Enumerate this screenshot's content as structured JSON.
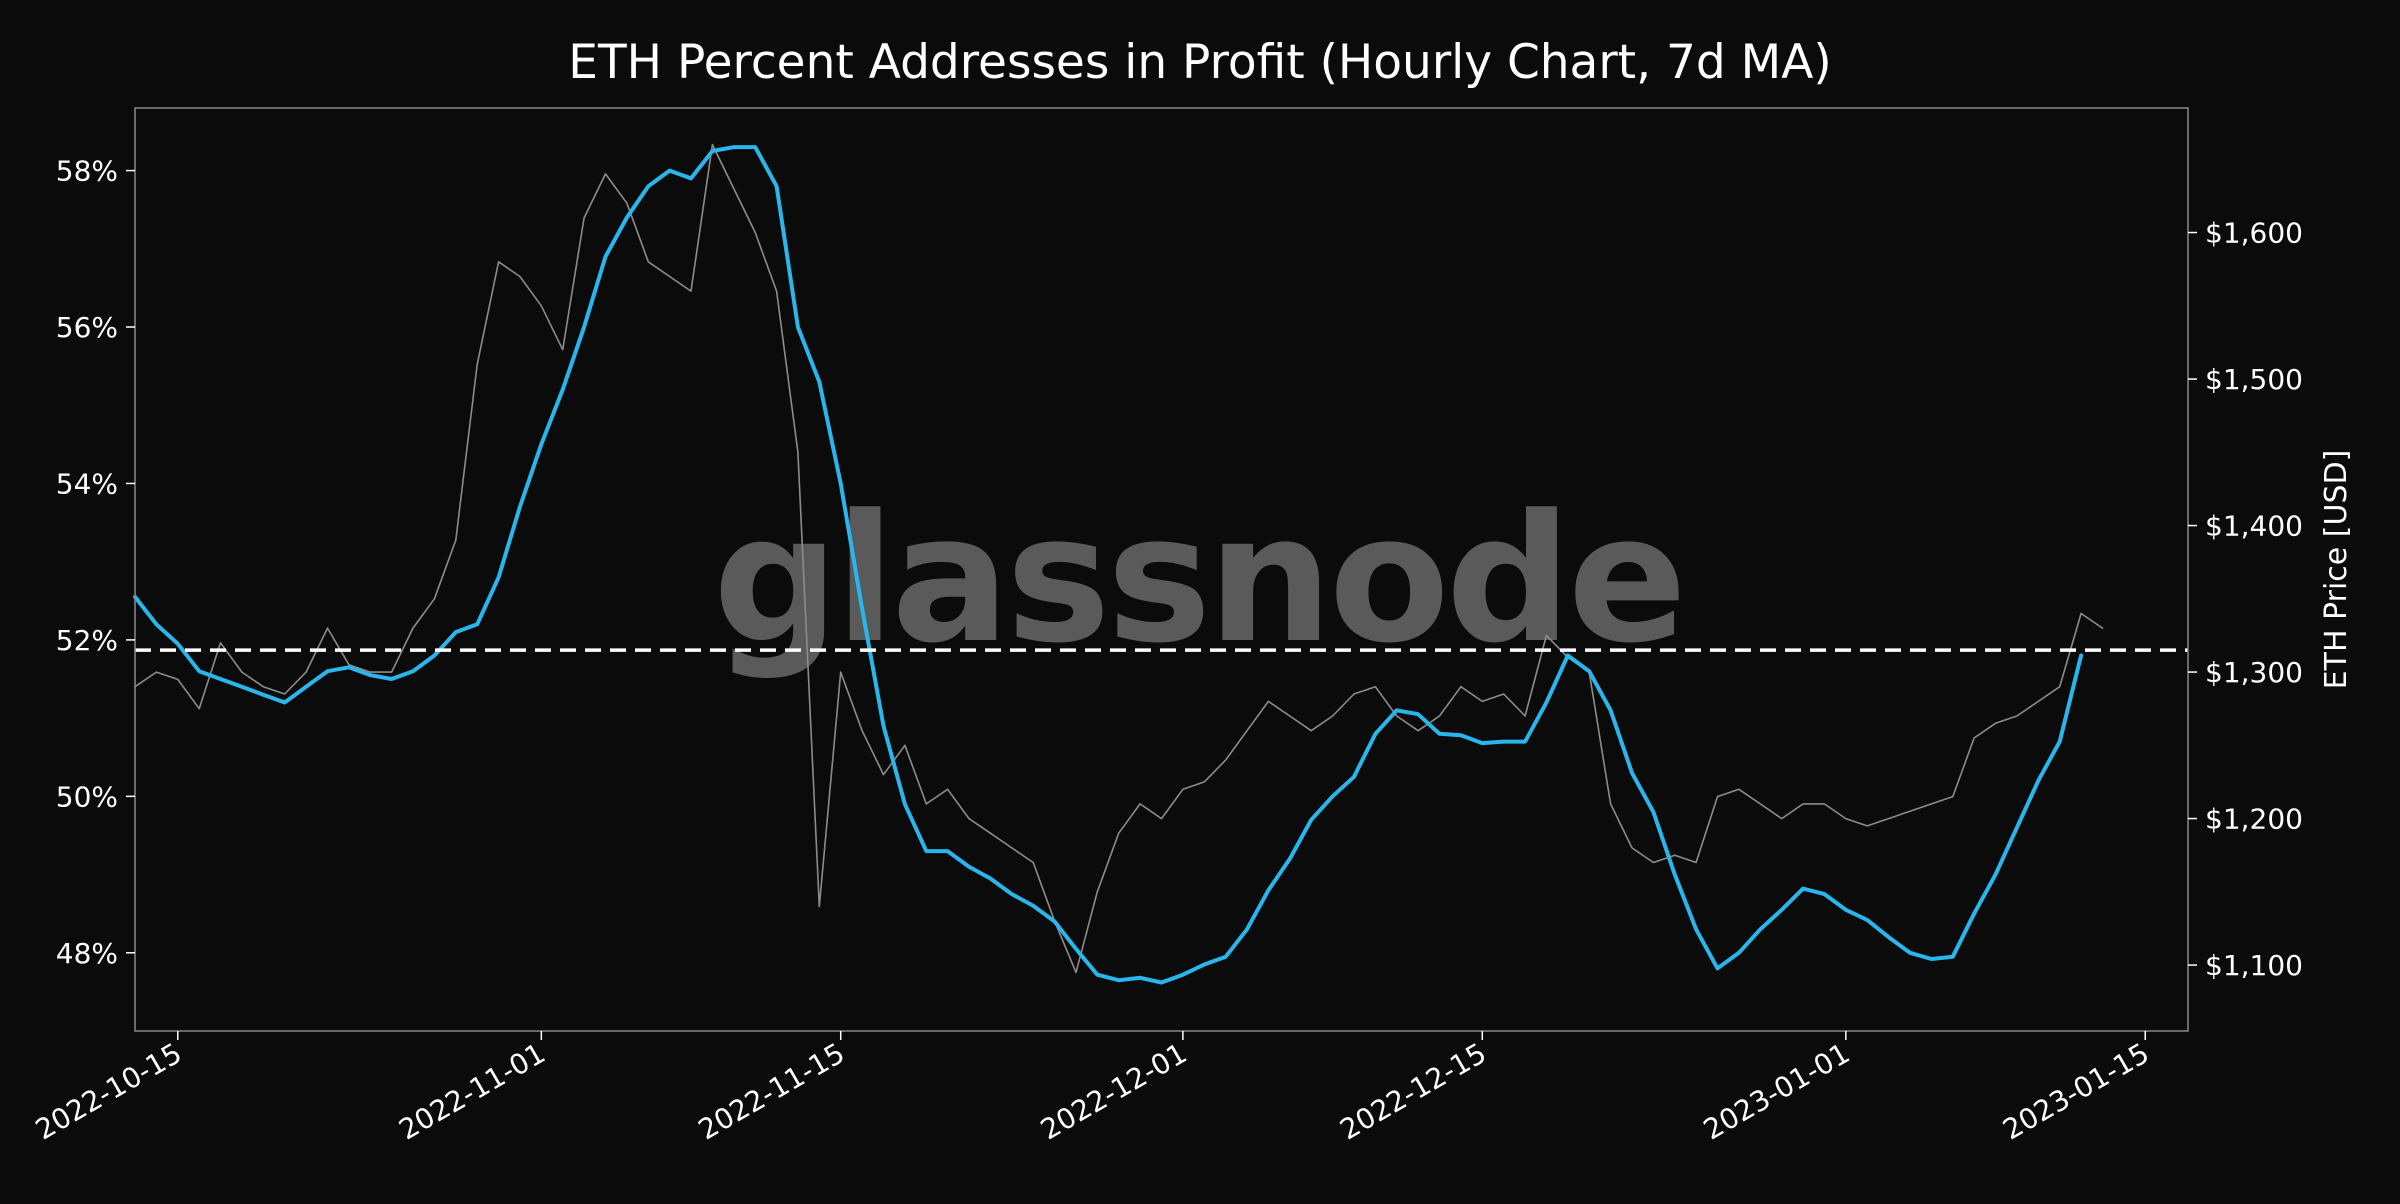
{
  "colors": {
    "background": "#0b0b0b",
    "plot_frame": "#8a8a8a",
    "ma_line": "#29b6ec",
    "price_line": "#8c8c8c",
    "threshold_line": "#ffffff",
    "text": "#ffffff",
    "watermark": "#5a5a5a"
  },
  "watermark": "glassnode",
  "chart_data": {
    "type": "line",
    "title": "ETH Percent Addresses in Profit (Hourly Chart, 7d MA)",
    "xlabel": "",
    "ylabel_left": "",
    "ylabel_right": "ETH Price [USD]",
    "x_range": [
      "2022-10-13",
      "2023-01-17"
    ],
    "ylim_left": [
      47,
      58.8
    ],
    "ylim_right": [
      1055,
      1685
    ],
    "x_ticks": [
      "2022-10-15",
      "2022-11-01",
      "2022-11-15",
      "2022-12-01",
      "2022-12-15",
      "2023-01-01",
      "2023-01-15"
    ],
    "y_ticks_left": [
      {
        "value": 48,
        "label": "48%"
      },
      {
        "value": 50,
        "label": "50%"
      },
      {
        "value": 52,
        "label": "52%"
      },
      {
        "value": 54,
        "label": "54%"
      },
      {
        "value": 56,
        "label": "56%"
      },
      {
        "value": 58,
        "label": "58%"
      }
    ],
    "y_ticks_right": [
      {
        "value": 1100,
        "label": "$1,100"
      },
      {
        "value": 1200,
        "label": "$1,200"
      },
      {
        "value": 1300,
        "label": "$1,300"
      },
      {
        "value": 1400,
        "label": "$1,400"
      },
      {
        "value": 1500,
        "label": "$1,500"
      },
      {
        "value": 1600,
        "label": "$1,600"
      }
    ],
    "threshold": {
      "axis": "left",
      "value": 51.87,
      "style": "dashed"
    },
    "grid": false,
    "legend": "none",
    "series": [
      {
        "axis": "left",
        "color": "#29b6ec",
        "points": [
          [
            "2022-10-13",
            52.55
          ],
          [
            "2022-10-14",
            52.2
          ],
          [
            "2022-10-15",
            51.95
          ],
          [
            "2022-10-16",
            51.6
          ],
          [
            "2022-10-17",
            51.5
          ],
          [
            "2022-10-18",
            51.4
          ],
          [
            "2022-10-19",
            51.3
          ],
          [
            "2022-10-20",
            51.2
          ],
          [
            "2022-10-21",
            51.4
          ],
          [
            "2022-10-22",
            51.6
          ],
          [
            "2022-10-23",
            51.65
          ],
          [
            "2022-10-24",
            51.55
          ],
          [
            "2022-10-25",
            51.5
          ],
          [
            "2022-10-26",
            51.6
          ],
          [
            "2022-10-27",
            51.8
          ],
          [
            "2022-10-28",
            52.1
          ],
          [
            "2022-10-29",
            52.2
          ],
          [
            "2022-10-30",
            52.8
          ],
          [
            "2022-10-31",
            53.7
          ],
          [
            "2022-11-01",
            54.5
          ],
          [
            "2022-11-02",
            55.2
          ],
          [
            "2022-11-03",
            56.0
          ],
          [
            "2022-11-04",
            56.9
          ],
          [
            "2022-11-05",
            57.4
          ],
          [
            "2022-11-06",
            57.8
          ],
          [
            "2022-11-07",
            58.0
          ],
          [
            "2022-11-08",
            57.9
          ],
          [
            "2022-11-09",
            58.25
          ],
          [
            "2022-11-10",
            58.3
          ],
          [
            "2022-11-11",
            58.3
          ],
          [
            "2022-11-12",
            57.8
          ],
          [
            "2022-11-13",
            56.0
          ],
          [
            "2022-11-14",
            55.3
          ],
          [
            "2022-11-15",
            54.0
          ],
          [
            "2022-11-16",
            52.4
          ],
          [
            "2022-11-17",
            50.9
          ],
          [
            "2022-11-18",
            49.9
          ],
          [
            "2022-11-19",
            49.3
          ],
          [
            "2022-11-20",
            49.3
          ],
          [
            "2022-11-21",
            49.1
          ],
          [
            "2022-11-22",
            48.95
          ],
          [
            "2022-11-23",
            48.75
          ],
          [
            "2022-11-24",
            48.6
          ],
          [
            "2022-11-25",
            48.4
          ],
          [
            "2022-11-26",
            48.05
          ],
          [
            "2022-11-27",
            47.72
          ],
          [
            "2022-11-28",
            47.65
          ],
          [
            "2022-11-29",
            47.68
          ],
          [
            "2022-11-30",
            47.62
          ],
          [
            "2022-12-01",
            47.72
          ],
          [
            "2022-12-02",
            47.85
          ],
          [
            "2022-12-03",
            47.95
          ],
          [
            "2022-12-04",
            48.3
          ],
          [
            "2022-12-05",
            48.8
          ],
          [
            "2022-12-06",
            49.2
          ],
          [
            "2022-12-07",
            49.7
          ],
          [
            "2022-12-08",
            50.0
          ],
          [
            "2022-12-09",
            50.25
          ],
          [
            "2022-12-10",
            50.8
          ],
          [
            "2022-12-11",
            51.1
          ],
          [
            "2022-12-12",
            51.05
          ],
          [
            "2022-12-13",
            50.8
          ],
          [
            "2022-12-14",
            50.78
          ],
          [
            "2022-12-15",
            50.68
          ],
          [
            "2022-12-16",
            50.7
          ],
          [
            "2022-12-17",
            50.7
          ],
          [
            "2022-12-18",
            51.2
          ],
          [
            "2022-12-19",
            51.8
          ],
          [
            "2022-12-20",
            51.6
          ],
          [
            "2022-12-21",
            51.1
          ],
          [
            "2022-12-22",
            50.3
          ],
          [
            "2022-12-23",
            49.8
          ],
          [
            "2022-12-24",
            49.0
          ],
          [
            "2022-12-25",
            48.3
          ],
          [
            "2022-12-26",
            47.8
          ],
          [
            "2022-12-27",
            48.0
          ],
          [
            "2022-12-28",
            48.3
          ],
          [
            "2022-12-29",
            48.55
          ],
          [
            "2022-12-30",
            48.82
          ],
          [
            "2022-12-31",
            48.75
          ],
          [
            "2023-01-01",
            48.55
          ],
          [
            "2023-01-02",
            48.42
          ],
          [
            "2023-01-03",
            48.2
          ],
          [
            "2023-01-04",
            48.0
          ],
          [
            "2023-01-05",
            47.92
          ],
          [
            "2023-01-06",
            47.95
          ],
          [
            "2023-01-07",
            48.5
          ],
          [
            "2023-01-08",
            49.0
          ],
          [
            "2023-01-09",
            49.6
          ],
          [
            "2023-01-10",
            50.2
          ],
          [
            "2023-01-11",
            50.7
          ],
          [
            "2023-01-12",
            51.8
          ]
        ]
      },
      {
        "axis": "right",
        "color": "#8c8c8c",
        "points": [
          [
            "2022-10-13",
            1290
          ],
          [
            "2022-10-14",
            1300
          ],
          [
            "2022-10-15",
            1295
          ],
          [
            "2022-10-16",
            1275
          ],
          [
            "2022-10-17",
            1320
          ],
          [
            "2022-10-18",
            1300
          ],
          [
            "2022-10-19",
            1290
          ],
          [
            "2022-10-20",
            1285
          ],
          [
            "2022-10-21",
            1300
          ],
          [
            "2022-10-22",
            1330
          ],
          [
            "2022-10-23",
            1305
          ],
          [
            "2022-10-24",
            1300
          ],
          [
            "2022-10-25",
            1300
          ],
          [
            "2022-10-26",
            1330
          ],
          [
            "2022-10-27",
            1350
          ],
          [
            "2022-10-28",
            1390
          ],
          [
            "2022-10-29",
            1510
          ],
          [
            "2022-10-30",
            1580
          ],
          [
            "2022-10-31",
            1570
          ],
          [
            "2022-11-01",
            1550
          ],
          [
            "2022-11-02",
            1520
          ],
          [
            "2022-11-03",
            1610
          ],
          [
            "2022-11-04",
            1640
          ],
          [
            "2022-11-05",
            1620
          ],
          [
            "2022-11-06",
            1580
          ],
          [
            "2022-11-07",
            1570
          ],
          [
            "2022-11-08",
            1560
          ],
          [
            "2022-11-09",
            1660
          ],
          [
            "2022-11-10",
            1630
          ],
          [
            "2022-11-11",
            1600
          ],
          [
            "2022-11-12",
            1560
          ],
          [
            "2022-11-13",
            1450
          ],
          [
            "2022-11-14",
            1140
          ],
          [
            "2022-11-15",
            1300
          ],
          [
            "2022-11-16",
            1260
          ],
          [
            "2022-11-17",
            1230
          ],
          [
            "2022-11-18",
            1250
          ],
          [
            "2022-11-19",
            1210
          ],
          [
            "2022-11-20",
            1220
          ],
          [
            "2022-11-21",
            1200
          ],
          [
            "2022-11-22",
            1190
          ],
          [
            "2022-11-23",
            1180
          ],
          [
            "2022-11-24",
            1170
          ],
          [
            "2022-11-25",
            1130
          ],
          [
            "2022-11-26",
            1095
          ],
          [
            "2022-11-27",
            1150
          ],
          [
            "2022-11-28",
            1190
          ],
          [
            "2022-11-29",
            1210
          ],
          [
            "2022-11-30",
            1200
          ],
          [
            "2022-12-01",
            1220
          ],
          [
            "2022-12-02",
            1225
          ],
          [
            "2022-12-03",
            1240
          ],
          [
            "2022-12-04",
            1260
          ],
          [
            "2022-12-05",
            1280
          ],
          [
            "2022-12-06",
            1270
          ],
          [
            "2022-12-07",
            1260
          ],
          [
            "2022-12-08",
            1270
          ],
          [
            "2022-12-09",
            1285
          ],
          [
            "2022-12-10",
            1290
          ],
          [
            "2022-12-11",
            1270
          ],
          [
            "2022-12-12",
            1260
          ],
          [
            "2022-12-13",
            1270
          ],
          [
            "2022-12-14",
            1290
          ],
          [
            "2022-12-15",
            1280
          ],
          [
            "2022-12-16",
            1285
          ],
          [
            "2022-12-17",
            1270
          ],
          [
            "2022-12-18",
            1325
          ],
          [
            "2022-12-19",
            1310
          ],
          [
            "2022-12-20",
            1300
          ],
          [
            "2022-12-21",
            1210
          ],
          [
            "2022-12-22",
            1180
          ],
          [
            "2022-12-23",
            1170
          ],
          [
            "2022-12-24",
            1175
          ],
          [
            "2022-12-25",
            1170
          ],
          [
            "2022-12-26",
            1215
          ],
          [
            "2022-12-27",
            1220
          ],
          [
            "2022-12-28",
            1210
          ],
          [
            "2022-12-29",
            1200
          ],
          [
            "2022-12-30",
            1210
          ],
          [
            "2022-12-31",
            1210
          ],
          [
            "2023-01-01",
            1200
          ],
          [
            "2023-01-02",
            1195
          ],
          [
            "2023-01-03",
            1200
          ],
          [
            "2023-01-04",
            1205
          ],
          [
            "2023-01-05",
            1210
          ],
          [
            "2023-01-06",
            1215
          ],
          [
            "2023-01-07",
            1255
          ],
          [
            "2023-01-08",
            1265
          ],
          [
            "2023-01-09",
            1270
          ],
          [
            "2023-01-10",
            1280
          ],
          [
            "2023-01-11",
            1290
          ],
          [
            "2023-01-12",
            1340
          ],
          [
            "2023-01-13",
            1330
          ]
        ]
      }
    ]
  }
}
